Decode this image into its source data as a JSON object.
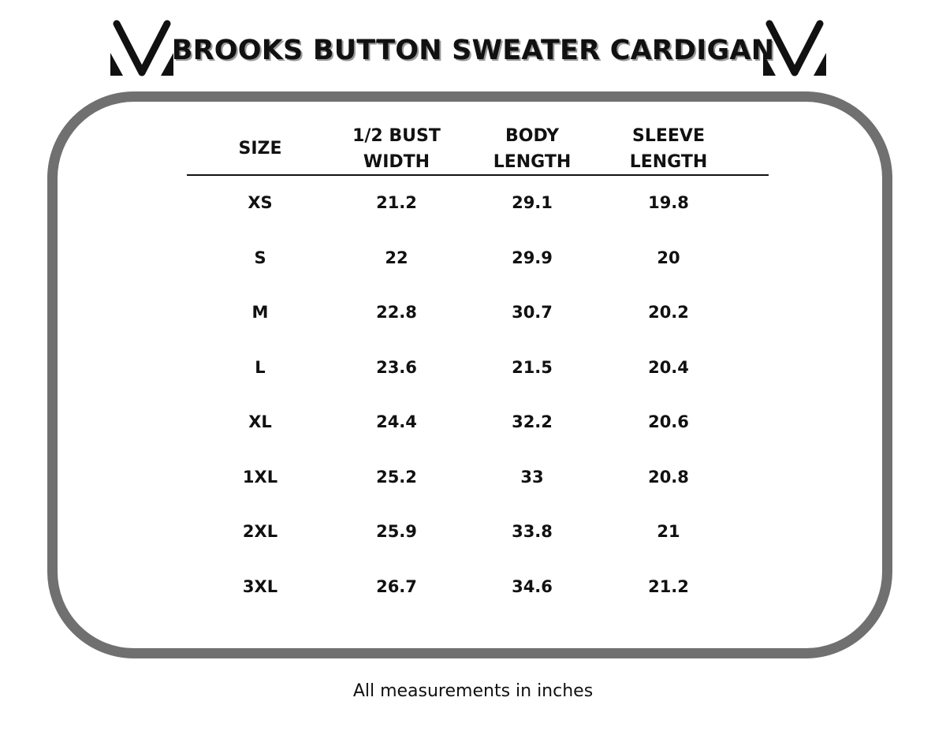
{
  "title": "BROOKS BUTTON SWEATER CARDIGAN",
  "logo_icon": "v-chevron-logo",
  "colors": {
    "frame": "#707070",
    "text": "#111111"
  },
  "headers": [
    "SIZE",
    "1/2 BUST\nWIDTH",
    "BODY\nLENGTH",
    "SLEEVE\nLENGTH"
  ],
  "rows": [
    [
      "XS",
      "21.2",
      "29.1",
      "19.8"
    ],
    [
      "S",
      "22",
      "29.9",
      "20"
    ],
    [
      "M",
      "22.8",
      "30.7",
      "20.2"
    ],
    [
      "L",
      "23.6",
      "21.5",
      "20.4"
    ],
    [
      "XL",
      "24.4",
      "32.2",
      "20.6"
    ],
    [
      "1XL",
      "25.2",
      "33",
      "20.8"
    ],
    [
      "2XL",
      "25.9",
      "33.8",
      "21"
    ],
    [
      "3XL",
      "26.7",
      "34.6",
      "21.2"
    ]
  ],
  "footer": "All measurements in inches"
}
